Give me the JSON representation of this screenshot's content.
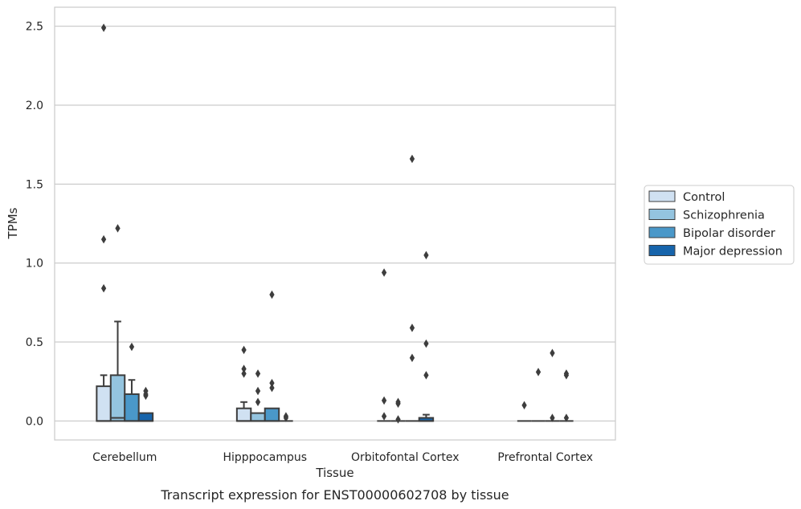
{
  "chart_data": {
    "type": "box",
    "xlabel": "Tissue",
    "ylabel": "TPMs",
    "caption": "Transcript expression for ENST00000602708 by tissue",
    "ylim": [
      -0.12,
      2.62
    ],
    "yticks": [
      0.0,
      0.5,
      1.0,
      1.5,
      2.0,
      2.5
    ],
    "ytick_labels": [
      "0.0",
      "0.5",
      "1.0",
      "1.5",
      "2.0",
      "2.5"
    ],
    "grid": "horizontal",
    "legend_position": "right",
    "categories": [
      "Cerebellum",
      "Hipppocampus",
      "Orbitofontal Cortex",
      "Prefrontal Cortex"
    ],
    "series": [
      {
        "name": "Control",
        "color": "#d0e1f2",
        "boxes": [
          {
            "q1": 0.0,
            "median": 0.0,
            "q3": 0.22,
            "whisker_low": 0.0,
            "whisker_high": 0.29,
            "outliers": [
              2.49,
              1.15,
              0.84
            ]
          },
          {
            "q1": 0.0,
            "median": 0.0,
            "q3": 0.08,
            "whisker_low": 0.0,
            "whisker_high": 0.12,
            "outliers": [
              0.45,
              0.33,
              0.3
            ]
          },
          {
            "q1": 0.0,
            "median": 0.0,
            "q3": 0.0,
            "whisker_low": 0.0,
            "whisker_high": 0.0,
            "outliers": [
              0.94,
              0.13,
              0.03
            ]
          },
          {
            "q1": 0.0,
            "median": 0.0,
            "q3": 0.0,
            "whisker_low": 0.0,
            "whisker_high": 0.0,
            "outliers": [
              0.1
            ]
          }
        ]
      },
      {
        "name": "Schizophrenia",
        "color": "#94c4df",
        "boxes": [
          {
            "q1": 0.0,
            "median": 0.02,
            "q3": 0.29,
            "whisker_low": 0.0,
            "whisker_high": 0.63,
            "outliers": [
              1.22
            ]
          },
          {
            "q1": 0.0,
            "median": 0.0,
            "q3": 0.05,
            "whisker_low": 0.0,
            "whisker_high": 0.05,
            "outliers": [
              0.3,
              0.19,
              0.12
            ]
          },
          {
            "q1": 0.0,
            "median": 0.0,
            "q3": 0.0,
            "whisker_low": 0.0,
            "whisker_high": 0.0,
            "outliers": [
              0.12,
              0.11,
              0.01
            ]
          },
          {
            "q1": 0.0,
            "median": 0.0,
            "q3": 0.0,
            "whisker_low": 0.0,
            "whisker_high": 0.0,
            "outliers": [
              0.31
            ]
          }
        ]
      },
      {
        "name": "Bipolar disorder",
        "color": "#4a98c9",
        "boxes": [
          {
            "q1": 0.0,
            "median": 0.0,
            "q3": 0.17,
            "whisker_low": 0.0,
            "whisker_high": 0.26,
            "outliers": [
              0.47
            ]
          },
          {
            "q1": 0.0,
            "median": 0.0,
            "q3": 0.08,
            "whisker_low": 0.0,
            "whisker_high": 0.08,
            "outliers": [
              0.8,
              0.24,
              0.21
            ]
          },
          {
            "q1": 0.0,
            "median": 0.0,
            "q3": 0.0,
            "whisker_low": 0.0,
            "whisker_high": 0.0,
            "outliers": [
              1.66,
              0.59,
              0.4
            ]
          },
          {
            "q1": 0.0,
            "median": 0.0,
            "q3": 0.0,
            "whisker_low": 0.0,
            "whisker_high": 0.0,
            "outliers": [
              0.43,
              0.02
            ]
          }
        ]
      },
      {
        "name": "Major depression",
        "color": "#1764ab",
        "boxes": [
          {
            "q1": 0.0,
            "median": 0.0,
            "q3": 0.05,
            "whisker_low": 0.0,
            "whisker_high": 0.05,
            "outliers": [
              0.19,
              0.17,
              0.16
            ]
          },
          {
            "q1": 0.0,
            "median": 0.0,
            "q3": 0.0,
            "whisker_low": 0.0,
            "whisker_high": 0.0,
            "outliers": [
              0.03,
              0.02
            ]
          },
          {
            "q1": 0.0,
            "median": 0.0,
            "q3": 0.02,
            "whisker_low": 0.0,
            "whisker_high": 0.04,
            "outliers": [
              1.05,
              0.49,
              0.29
            ]
          },
          {
            "q1": 0.0,
            "median": 0.0,
            "q3": 0.0,
            "whisker_low": 0.0,
            "whisker_high": 0.0,
            "outliers": [
              0.3,
              0.29,
              0.02
            ]
          }
        ]
      }
    ]
  }
}
